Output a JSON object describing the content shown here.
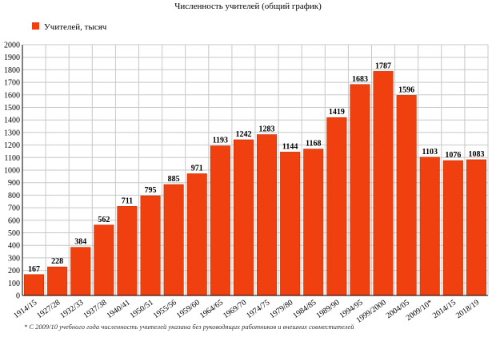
{
  "chart_data": {
    "type": "bar",
    "title": "Численность учителей (общий график)",
    "legend": {
      "position": "top-left",
      "entries": [
        "Учителей, тысяч"
      ]
    },
    "categories": [
      "1914/15",
      "1927/28",
      "1932/33",
      "1937/38",
      "1940/41",
      "1950/51",
      "1955/56",
      "1959/60",
      "1964/65",
      "1969/70",
      "1974/75",
      "1979/80",
      "1984/85",
      "1989/90",
      "1994/95",
      "1999/2000",
      "2004/05",
      "2009/10*",
      "2014/15",
      "2018/19"
    ],
    "series": [
      {
        "name": "Учителей, тысяч",
        "values": [
          167,
          228,
          384,
          562,
          711,
          795,
          885,
          971,
          1193,
          1242,
          1283,
          1144,
          1168,
          1419,
          1683,
          1787,
          1596,
          1103,
          1076,
          1083
        ]
      }
    ],
    "xlabel": "",
    "ylabel": "",
    "ylim": [
      0,
      2000
    ],
    "ytick_step": 100,
    "grid": true,
    "colors": {
      "bar": "#f04010",
      "bar_stroke": "#c03000"
    },
    "footnote": "* С 2009/10 учебного года численность учителей указана без руководящих работников и внешних совместителей"
  }
}
